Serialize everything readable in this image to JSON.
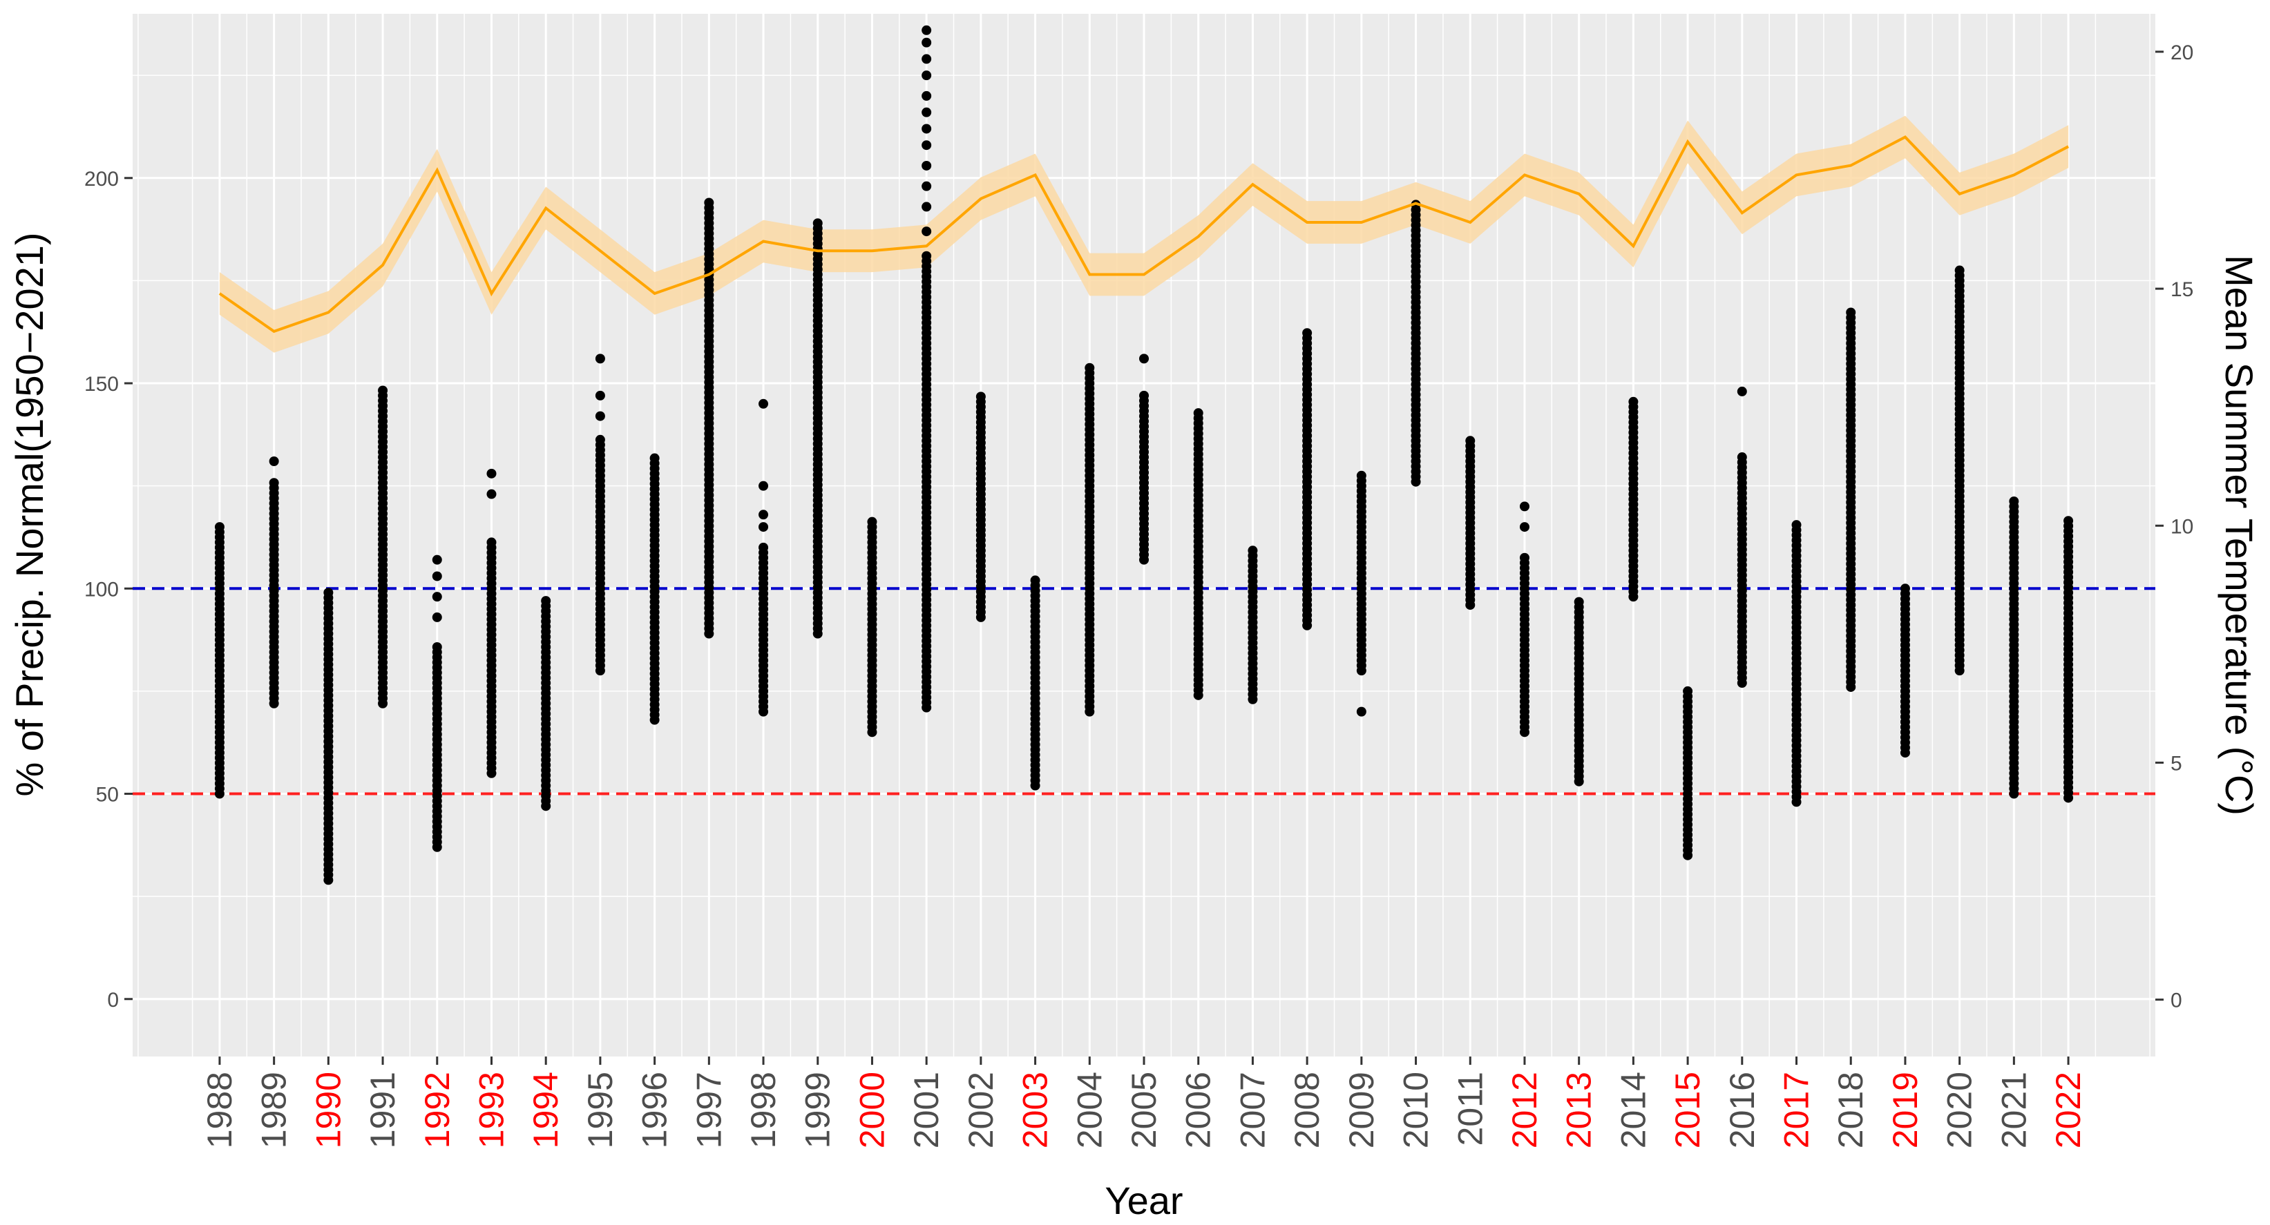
{
  "chart_data": {
    "type": "scatter",
    "title": "",
    "xlabel": "Year",
    "ylabel": "% of Precip. Normal(1950−2021)",
    "ylabel_right": "Mean Summer Temperature (°C)",
    "ylim": [
      -14,
      240
    ],
    "y_ticks": [
      0,
      50,
      100,
      150,
      200
    ],
    "y2lim": [
      -1.2,
      20.8
    ],
    "y2_ticks": [
      0,
      5,
      10,
      15,
      20
    ],
    "categories": [
      "1988",
      "1989",
      "1990",
      "1991",
      "1992",
      "1993",
      "1994",
      "1995",
      "1996",
      "1997",
      "1998",
      "1999",
      "2000",
      "2001",
      "2002",
      "2003",
      "2004",
      "2005",
      "2006",
      "2007",
      "2008",
      "2009",
      "2010",
      "2011",
      "2012",
      "2013",
      "2014",
      "2015",
      "2016",
      "2017",
      "2018",
      "2019",
      "2020",
      "2021",
      "2022"
    ],
    "drought_years": [
      "1990",
      "1992",
      "1993",
      "1994",
      "2000",
      "2003",
      "2012",
      "2013",
      "2015",
      "2017",
      "2019",
      "2022"
    ],
    "colors": {
      "panel": "#ebebeb",
      "grid": "#ffffff",
      "points": "#000000",
      "temperature_line": "#ffa500",
      "temperature_band": "#fbd9a4",
      "reference_normal": "#0000cc",
      "reference_half": "#ff2020",
      "drought_label": "#ff0000",
      "normal_label": "#4d4d4d"
    },
    "reference_lines": [
      {
        "name": "normal",
        "y": 100,
        "style": "dashed"
      },
      {
        "name": "half-normal",
        "y": 50,
        "style": "dashed"
      }
    ],
    "series": [
      {
        "name": "precipitation_percent_of_normal",
        "ranges": [
          {
            "year": "1988",
            "min": 50,
            "max": 115,
            "outliers": []
          },
          {
            "year": "1989",
            "min": 72,
            "max": 126,
            "outliers": [
              131
            ]
          },
          {
            "year": "1990",
            "min": 29,
            "max": 99,
            "outliers": []
          },
          {
            "year": "1991",
            "min": 72,
            "max": 149,
            "outliers": []
          },
          {
            "year": "1992",
            "min": 37,
            "max": 86,
            "outliers": [
              93,
              98,
              103,
              107
            ]
          },
          {
            "year": "1993",
            "min": 55,
            "max": 112,
            "outliers": [
              123,
              128
            ]
          },
          {
            "year": "1994",
            "min": 47,
            "max": 97,
            "outliers": []
          },
          {
            "year": "1995",
            "min": 80,
            "max": 137,
            "outliers": [
              142,
              147,
              156
            ]
          },
          {
            "year": "1996",
            "min": 68,
            "max": 132,
            "outliers": []
          },
          {
            "year": "1997",
            "min": 89,
            "max": 194,
            "outliers": []
          },
          {
            "year": "1998",
            "min": 70,
            "max": 110,
            "outliers": [
              115,
              118,
              125,
              145
            ]
          },
          {
            "year": "1999",
            "min": 89,
            "max": 189,
            "outliers": []
          },
          {
            "year": "2000",
            "min": 65,
            "max": 117,
            "outliers": []
          },
          {
            "year": "2001",
            "min": 71,
            "max": 182,
            "outliers": [
              187,
              193,
              198,
              203,
              208,
              212,
              216,
              220,
              225,
              229,
              233,
              236
            ]
          },
          {
            "year": "2002",
            "min": 93,
            "max": 147,
            "outliers": []
          },
          {
            "year": "2003",
            "min": 52,
            "max": 102,
            "outliers": []
          },
          {
            "year": "2004",
            "min": 70,
            "max": 154,
            "outliers": []
          },
          {
            "year": "2005",
            "min": 107,
            "max": 147,
            "outliers": [
              156
            ]
          },
          {
            "year": "2006",
            "min": 74,
            "max": 143,
            "outliers": []
          },
          {
            "year": "2007",
            "min": 73,
            "max": 110,
            "outliers": []
          },
          {
            "year": "2008",
            "min": 91,
            "max": 163,
            "outliers": []
          },
          {
            "year": "2009",
            "min": 80,
            "max": 128,
            "outliers": [
              70
            ]
          },
          {
            "year": "2010",
            "min": 126,
            "max": 194,
            "outliers": []
          },
          {
            "year": "2011",
            "min": 96,
            "max": 137,
            "outliers": []
          },
          {
            "year": "2012",
            "min": 65,
            "max": 108,
            "outliers": [
              115,
              120
            ]
          },
          {
            "year": "2013",
            "min": 53,
            "max": 97,
            "outliers": []
          },
          {
            "year": "2014",
            "min": 98,
            "max": 146,
            "outliers": []
          },
          {
            "year": "2015",
            "min": 35,
            "max": 75,
            "outliers": []
          },
          {
            "year": "2016",
            "min": 77,
            "max": 132,
            "outliers": [
              148
            ]
          },
          {
            "year": "2017",
            "min": 48,
            "max": 116,
            "outliers": []
          },
          {
            "year": "2018",
            "min": 76,
            "max": 168,
            "outliers": []
          },
          {
            "year": "2019",
            "min": 60,
            "max": 100,
            "outliers": []
          },
          {
            "year": "2020",
            "min": 80,
            "max": 178,
            "outliers": []
          },
          {
            "year": "2021",
            "min": 50,
            "max": 122,
            "outliers": []
          },
          {
            "year": "2022",
            "min": 49,
            "max": 117,
            "outliers": []
          }
        ]
      },
      {
        "name": "mean_summer_temperature_c",
        "axis": "right",
        "values": [
          14.9,
          14.1,
          14.5,
          15.5,
          17.5,
          14.9,
          16.7,
          15.8,
          14.9,
          15.3,
          16.0,
          15.8,
          15.8,
          15.9,
          16.9,
          17.4,
          15.3,
          15.3,
          16.1,
          17.2,
          16.4,
          16.4,
          16.8,
          16.4,
          17.4,
          17.0,
          15.9,
          18.1,
          16.6,
          17.4,
          17.6,
          18.2,
          17.0,
          17.4,
          18.0
        ],
        "band_halfwidth": 0.45
      }
    ]
  }
}
